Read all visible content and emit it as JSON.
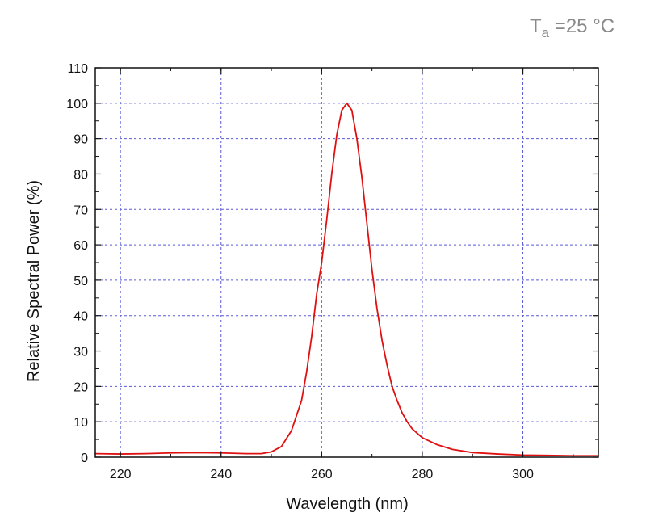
{
  "chart_data": {
    "type": "line",
    "title": "",
    "xlabel": "Wavelength (nm)",
    "ylabel": "Relative Spectral Power (%)",
    "xlim": [
      215,
      315
    ],
    "ylim": [
      0,
      110
    ],
    "x_ticks": [
      220,
      240,
      260,
      280,
      300
    ],
    "y_ticks": [
      0,
      10,
      20,
      30,
      40,
      50,
      60,
      70,
      80,
      90,
      100,
      110
    ],
    "grid": true,
    "annotation": {
      "main": "T",
      "subscript": "a",
      "suffix": " =25 °C"
    },
    "series": [
      {
        "color": "#e01010",
        "points": [
          [
            215,
            1.0
          ],
          [
            220,
            0.9
          ],
          [
            225,
            1.0
          ],
          [
            230,
            1.2
          ],
          [
            235,
            1.3
          ],
          [
            240,
            1.2
          ],
          [
            245,
            1.0
          ],
          [
            248,
            1.0
          ],
          [
            250,
            1.5
          ],
          [
            252,
            3.0
          ],
          [
            254,
            7.5
          ],
          [
            256,
            16.0
          ],
          [
            257,
            24.0
          ],
          [
            258,
            34.0
          ],
          [
            259,
            46.0
          ],
          [
            260,
            55.0
          ],
          [
            261,
            67.0
          ],
          [
            262,
            80.0
          ],
          [
            263,
            91.0
          ],
          [
            264,
            98.0
          ],
          [
            265,
            100.0
          ],
          [
            266,
            98.0
          ],
          [
            267,
            90.0
          ],
          [
            268,
            79.0
          ],
          [
            269,
            66.0
          ],
          [
            270,
            53.0
          ],
          [
            271,
            42.0
          ],
          [
            272,
            33.0
          ],
          [
            273,
            26.0
          ],
          [
            274,
            20.0
          ],
          [
            275,
            16.0
          ],
          [
            276,
            12.5
          ],
          [
            277,
            10.0
          ],
          [
            278,
            8.0
          ],
          [
            280,
            5.5
          ],
          [
            283,
            3.5
          ],
          [
            286,
            2.2
          ],
          [
            290,
            1.3
          ],
          [
            295,
            0.9
          ],
          [
            300,
            0.6
          ],
          [
            305,
            0.5
          ],
          [
            310,
            0.4
          ],
          [
            315,
            0.4
          ]
        ]
      }
    ]
  },
  "colors": {
    "grid": "#5b5bd6",
    "axis": "#111111",
    "series": "#e01010",
    "annotation": "#8a8a8a"
  }
}
